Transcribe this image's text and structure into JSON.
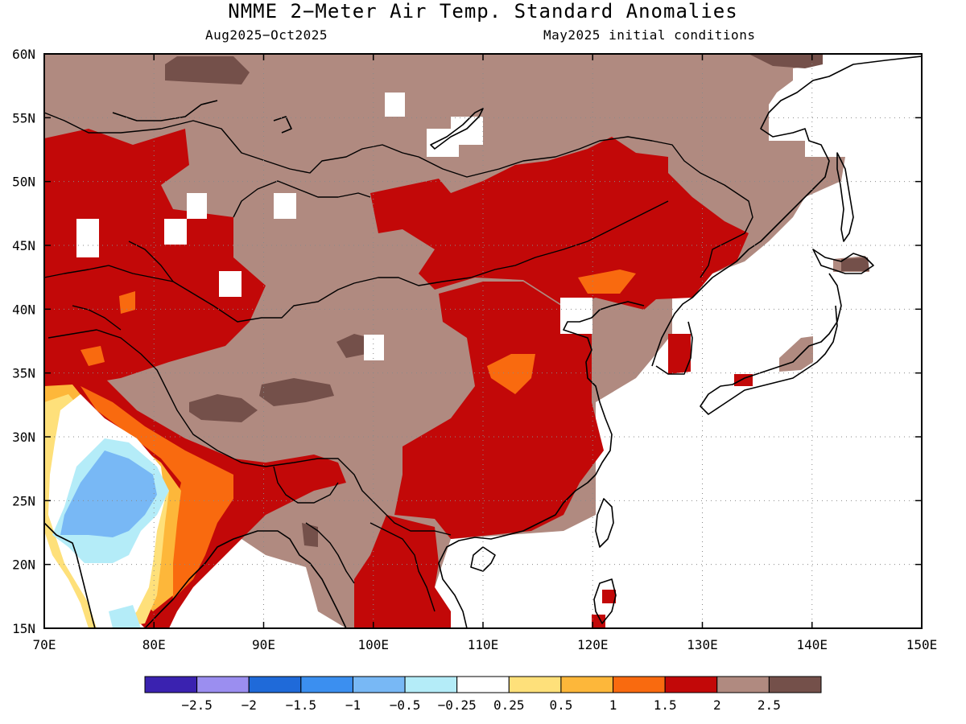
{
  "title": "NMME 2−Meter Air Temp. Standard Anomalies",
  "period": "Aug2025−Oct2025",
  "init": "May2025 initial conditions",
  "map": {
    "lon_range": [
      70,
      150
    ],
    "lat_range": [
      15,
      60
    ],
    "lon_ticks": [
      "70E",
      "80E",
      "90E",
      "100E",
      "110E",
      "120E",
      "130E",
      "140E",
      "150E"
    ],
    "lat_ticks": [
      "15N",
      "20N",
      "25N",
      "30N",
      "35N",
      "40N",
      "45N",
      "50N",
      "55N",
      "60N"
    ],
    "grid": "dotted"
  },
  "colorbar": {
    "colors": [
      "#3a22b0",
      "#9b8ef0",
      "#1f6ad9",
      "#3b8ff0",
      "#78b8f5",
      "#b4ecf8",
      "#ffffff",
      "#fee07a",
      "#fdb73a",
      "#f96a0f",
      "#c20808",
      "#b08a80",
      "#74504a"
    ],
    "labels": [
      "−2.5",
      "−2",
      "−1.5",
      "−1",
      "−0.5",
      "−0.25",
      "0.25",
      "0.5",
      "1",
      "1.5",
      "2",
      "2.5"
    ]
  }
}
